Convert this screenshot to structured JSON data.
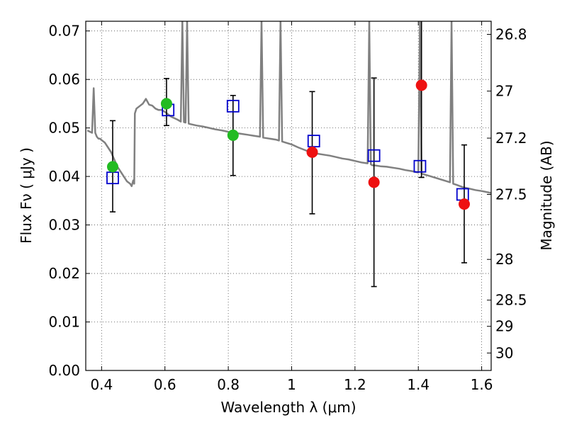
{
  "chart_data": {
    "type": "scatter",
    "xlabel": "Wavelength  λ (μm)",
    "ylabel": "Flux  Fν  ( μJy )",
    "y2label": "Magnitude (AB)",
    "xlim": [
      0.35,
      1.63
    ],
    "ylim": [
      0.0,
      0.072
    ],
    "grid": true,
    "x_ticks": [
      0.4,
      0.6,
      0.8,
      1.0,
      1.2,
      1.4,
      1.6
    ],
    "x_tick_labels": [
      "0.4",
      "0.6",
      "0.8",
      "1",
      "1.2",
      "1.4",
      "1.6"
    ],
    "y_ticks": [
      0.0,
      0.01,
      0.02,
      0.03,
      0.04,
      0.05,
      0.06,
      0.07
    ],
    "y_tick_labels": [
      "0.00",
      "0.01",
      "0.02",
      "0.03",
      "0.04",
      "0.05",
      "0.06",
      "0.07"
    ],
    "y2_ticks": [
      {
        "label": "26.8",
        "flux": 0.0693
      },
      {
        "label": "27",
        "flux": 0.0576
      },
      {
        "label": "27.2",
        "flux": 0.0479
      },
      {
        "label": "27.5",
        "flux": 0.0363
      },
      {
        "label": "28",
        "flux": 0.0229
      },
      {
        "label": "28.5",
        "flux": 0.0145
      },
      {
        "label": "29",
        "flux": 0.0091
      },
      {
        "label": "30",
        "flux": 0.0036
      }
    ],
    "colors": {
      "model_line": "#808080",
      "model_photometry": "#0000cc",
      "observed_green": "#22bb22",
      "observed_red": "#ee1111",
      "errorbar": "#000000"
    },
    "series": [
      {
        "kind": "model_spectrum",
        "x": [
          0.355,
          0.37,
          0.375,
          0.38,
          0.385,
          0.39,
          0.395,
          0.4,
          0.41,
          0.42,
          0.43,
          0.44,
          0.45,
          0.46,
          0.47,
          0.48,
          0.49,
          0.495,
          0.5,
          0.503,
          0.505,
          0.51,
          0.52,
          0.53,
          0.54,
          0.55,
          0.56,
          0.57,
          0.58,
          0.59,
          0.6,
          0.61,
          0.62,
          0.63,
          0.64,
          0.65,
          0.655,
          0.66,
          0.665,
          0.67,
          0.675,
          0.68,
          0.7,
          0.72,
          0.74,
          0.76,
          0.78,
          0.8,
          0.82,
          0.84,
          0.86,
          0.88,
          0.9,
          0.905,
          0.91,
          0.93,
          0.95,
          0.96,
          0.965,
          0.97,
          0.98,
          1.0,
          1.02,
          1.04,
          1.06,
          1.08,
          1.1,
          1.12,
          1.14,
          1.16,
          1.18,
          1.2,
          1.22,
          1.24,
          1.245,
          1.25,
          1.255,
          1.26,
          1.28,
          1.3,
          1.32,
          1.34,
          1.36,
          1.38,
          1.4,
          1.405,
          1.41,
          1.42,
          1.44,
          1.46,
          1.48,
          1.5,
          1.505,
          1.51,
          1.52,
          1.54,
          1.56,
          1.58,
          1.6,
          1.63
        ],
        "y": [
          0.0495,
          0.049,
          0.0582,
          0.049,
          0.0482,
          0.0478,
          0.0478,
          0.0475,
          0.047,
          0.046,
          0.045,
          0.0435,
          0.042,
          0.041,
          0.04,
          0.039,
          0.0385,
          0.038,
          0.0392,
          0.0385,
          0.053,
          0.054,
          0.0545,
          0.055,
          0.056,
          0.0548,
          0.0546,
          0.054,
          0.0537,
          0.0537,
          0.0533,
          0.0528,
          0.0523,
          0.052,
          0.0517,
          0.0513,
          0.072,
          0.0512,
          0.0511,
          0.072,
          0.0509,
          0.0508,
          0.0505,
          0.0503,
          0.05,
          0.0497,
          0.0495,
          0.0492,
          0.049,
          0.0488,
          0.0486,
          0.0484,
          0.0482,
          0.072,
          0.048,
          0.0478,
          0.0476,
          0.0474,
          0.072,
          0.0472,
          0.047,
          0.0466,
          0.046,
          0.0455,
          0.045,
          0.0447,
          0.0445,
          0.0443,
          0.044,
          0.0437,
          0.0435,
          0.0432,
          0.0429,
          0.0427,
          0.072,
          0.0425,
          0.0423,
          0.0423,
          0.0421,
          0.042,
          0.0418,
          0.0416,
          0.0413,
          0.0411,
          0.0408,
          0.072,
          0.0406,
          0.0404,
          0.04,
          0.0396,
          0.0392,
          0.0388,
          0.072,
          0.0385,
          0.0383,
          0.0378,
          0.0375,
          0.0372,
          0.037,
          0.0366
        ]
      },
      {
        "kind": "model_photometry",
        "x": [
          0.435,
          0.61,
          0.815,
          1.07,
          1.26,
          1.405,
          1.54
        ],
        "y": [
          0.0397,
          0.0537,
          0.0545,
          0.0473,
          0.0443,
          0.0421,
          0.0363
        ]
      },
      {
        "kind": "observed_green",
        "x": [
          0.435,
          0.605,
          0.815
        ],
        "y": [
          0.042,
          0.055,
          0.0485
        ],
        "err_lo": [
          0.0327,
          0.0505,
          0.0402
        ],
        "err_hi": [
          0.0515,
          0.0602,
          0.0567
        ]
      },
      {
        "kind": "observed_red",
        "x": [
          1.065,
          1.26,
          1.41,
          1.545
        ],
        "y": [
          0.045,
          0.0388,
          0.0588,
          0.0343
        ],
        "err_lo": [
          0.0323,
          0.0173,
          0.0398,
          0.0222
        ],
        "err_hi": [
          0.0575,
          0.0603,
          0.072,
          0.0465
        ]
      }
    ]
  }
}
